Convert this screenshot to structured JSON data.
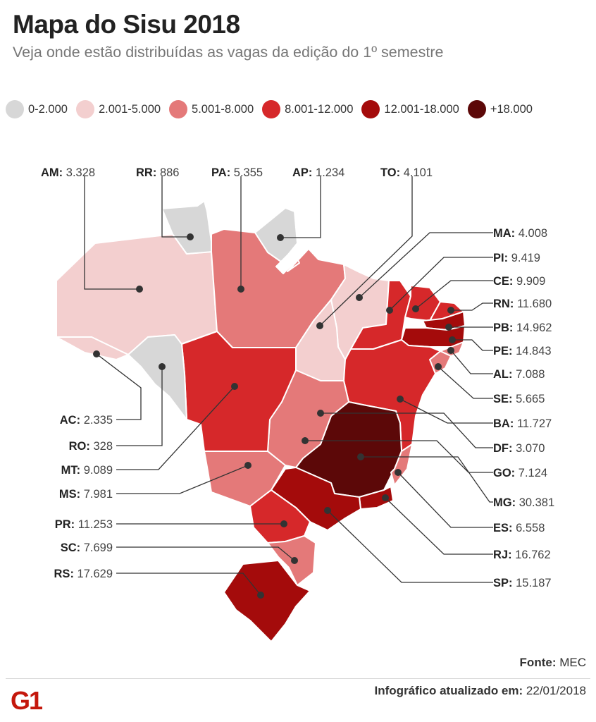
{
  "header": {
    "title": "Mapa do Sisu 2018",
    "subtitle": "Veja onde estão distribuídas as vagas da edição do 1º semestre"
  },
  "legend": [
    {
      "label": "0-2.000",
      "color": "#d7d7d7"
    },
    {
      "label": "2.001-5.000",
      "color": "#f3cfcf"
    },
    {
      "label": "5.001-8.000",
      "color": "#e47979"
    },
    {
      "label": "8.001-12.000",
      "color": "#d6282a"
    },
    {
      "label": "12.001-18.000",
      "color": "#a40b0b"
    },
    {
      "label": "+18.000",
      "color": "#5c0808"
    }
  ],
  "states": [
    {
      "abbr": "AM",
      "value": "3.328"
    },
    {
      "abbr": "RR",
      "value": "886"
    },
    {
      "abbr": "PA",
      "value": "5.355"
    },
    {
      "abbr": "AP",
      "value": "1.234"
    },
    {
      "abbr": "TO",
      "value": "4.101"
    },
    {
      "abbr": "MA",
      "value": "4.008"
    },
    {
      "abbr": "PI",
      "value": "9.419"
    },
    {
      "abbr": "CE",
      "value": "9.909"
    },
    {
      "abbr": "RN",
      "value": "11.680"
    },
    {
      "abbr": "PB",
      "value": "14.962"
    },
    {
      "abbr": "PE",
      "value": "14.843"
    },
    {
      "abbr": "AL",
      "value": "7.088"
    },
    {
      "abbr": "SE",
      "value": "5.665"
    },
    {
      "abbr": "BA",
      "value": "11.727"
    },
    {
      "abbr": "DF",
      "value": "3.070"
    },
    {
      "abbr": "GO",
      "value": "7.124"
    },
    {
      "abbr": "MG",
      "value": "30.381"
    },
    {
      "abbr": "ES",
      "value": "6.558"
    },
    {
      "abbr": "RJ",
      "value": "16.762"
    },
    {
      "abbr": "SP",
      "value": "15.187"
    },
    {
      "abbr": "AC",
      "value": "2.335"
    },
    {
      "abbr": "RO",
      "value": "328"
    },
    {
      "abbr": "MT",
      "value": "9.089"
    },
    {
      "abbr": "MS",
      "value": "7.981"
    },
    {
      "abbr": "PR",
      "value": "11.253"
    },
    {
      "abbr": "SC",
      "value": "7.699"
    },
    {
      "abbr": "RS",
      "value": "17.629"
    }
  ],
  "footer": {
    "source_label": "Fonte:",
    "source_value": "MEC",
    "updated_label": "Infográfico atualizado em:",
    "updated_value": "22/01/2018",
    "logo_text": "G1",
    "logo_color": "#c4170c"
  }
}
